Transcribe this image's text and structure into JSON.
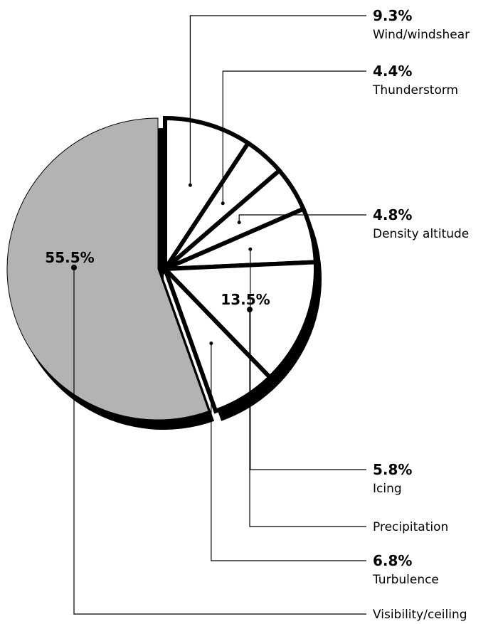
{
  "chart_data": {
    "type": "pie",
    "categories": [
      "Wind/windshear",
      "Thunderstorm",
      "Density altitude",
      "Icing",
      "Precipitation",
      "Turbulence",
      "Visibility/ceiling"
    ],
    "values": [
      9.3,
      4.4,
      4.8,
      5.8,
      13.5,
      6.8,
      55.5
    ],
    "value_labels": [
      "9.3%",
      "4.4%",
      "4.8%",
      "5.8%",
      "13.5%",
      "6.8%",
      "55.5%"
    ],
    "colors": [
      "#ffffff",
      "#ffffff",
      "#ffffff",
      "#ffffff",
      "#ffffff",
      "#ffffff",
      "#b3b3b3"
    ]
  }
}
